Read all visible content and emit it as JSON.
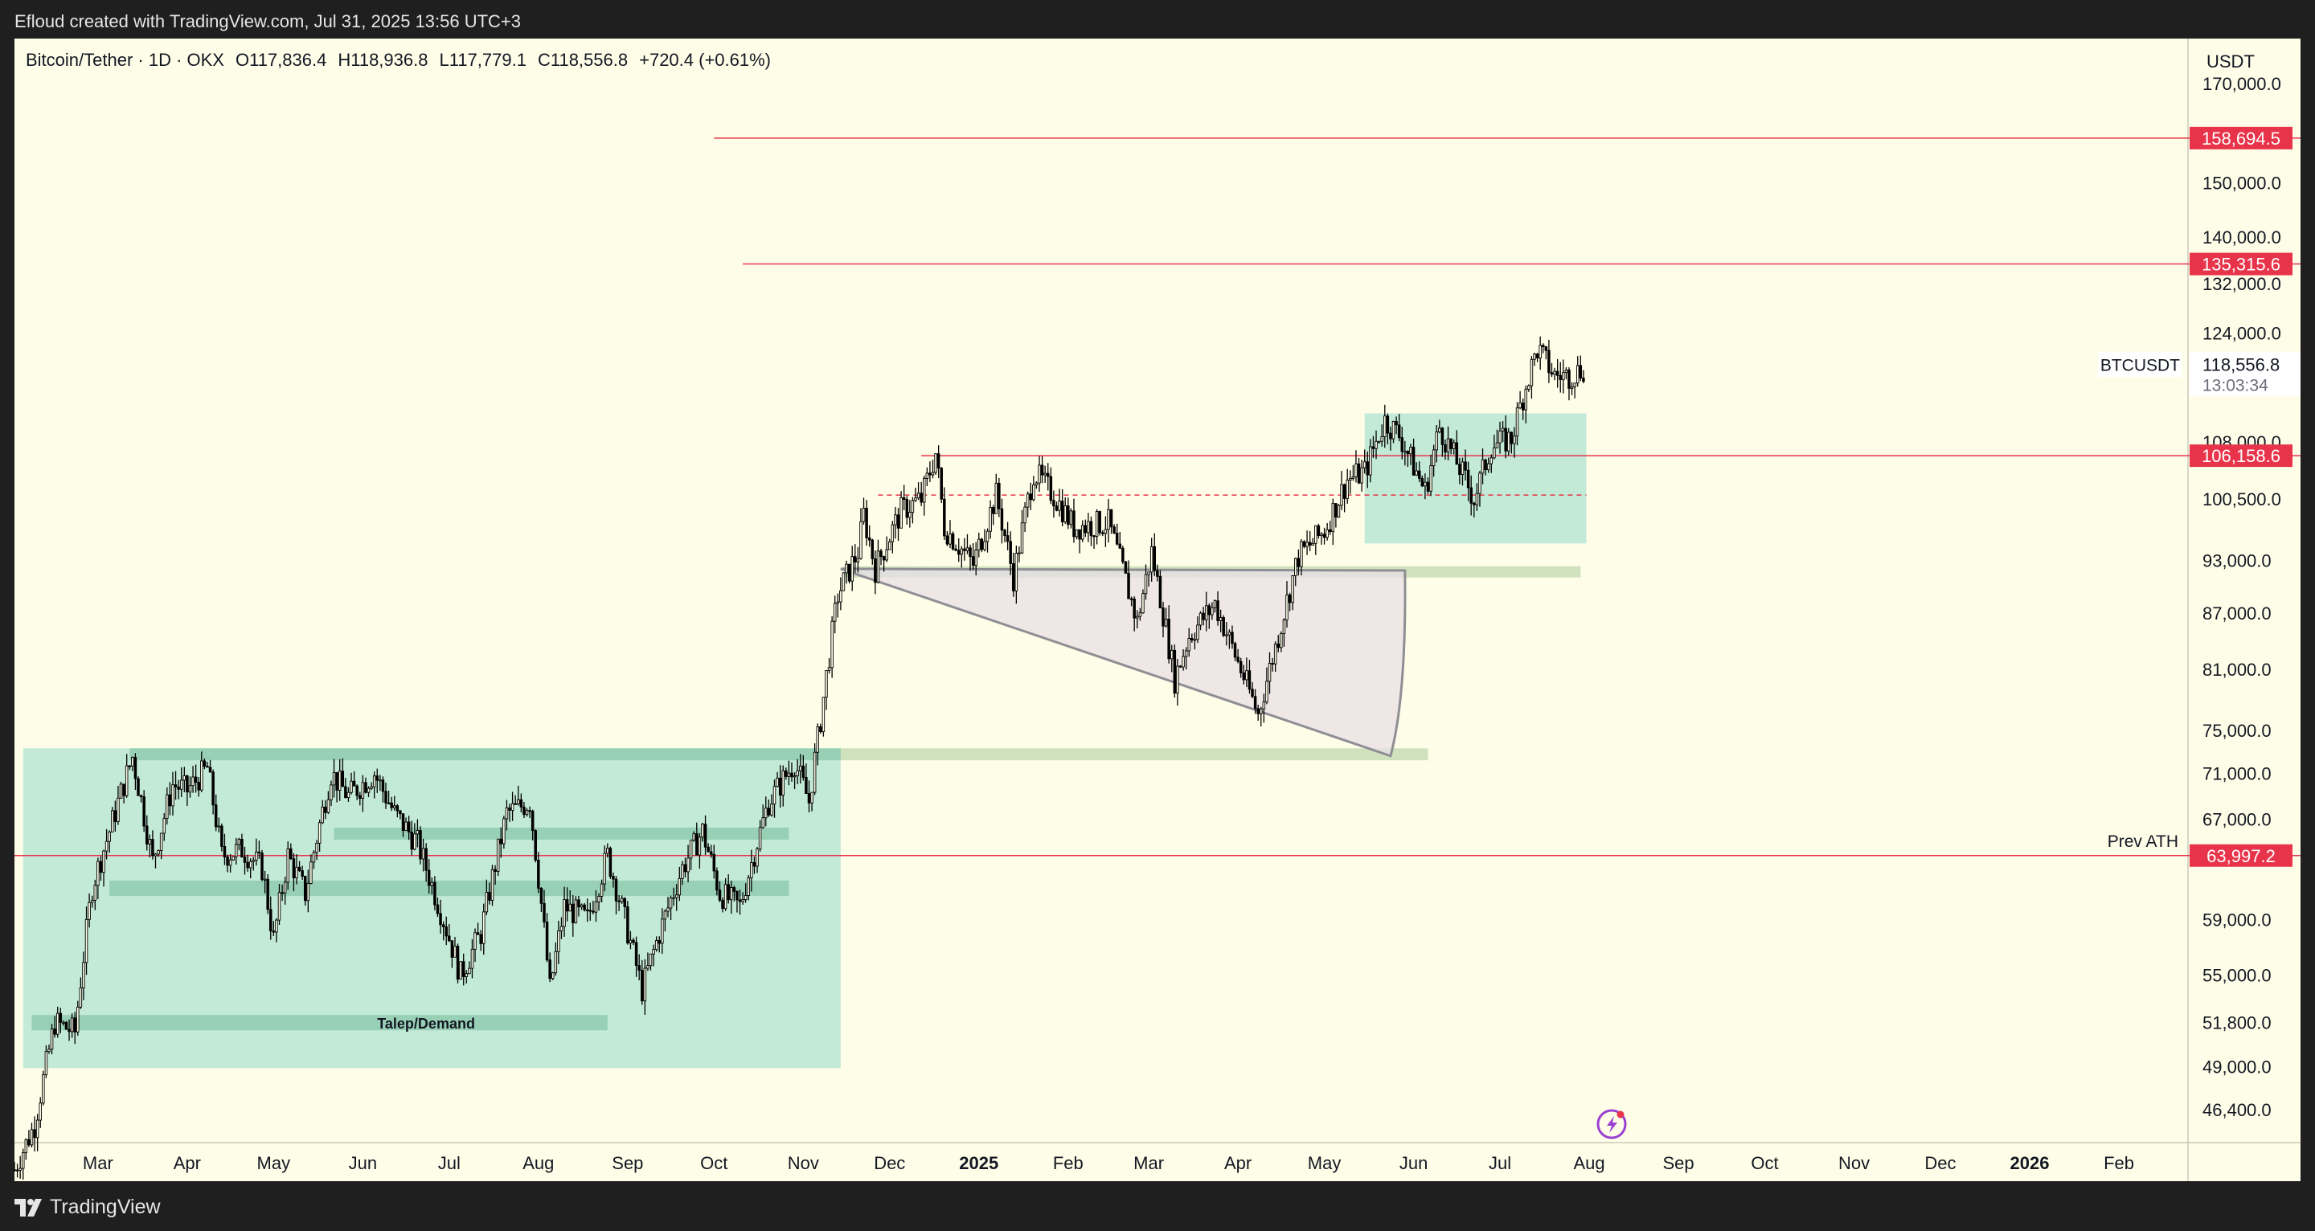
{
  "header": {
    "credit": "Efloud created with TradingView.com, Jul 31, 2025 13:56 UTC+3"
  },
  "footer": {
    "brand": "TradingView"
  },
  "colors": {
    "background": "#fefee8",
    "level_line": "#e8344b",
    "zone_fill": "#b8e5d4",
    "zone_band": "#93cdb2",
    "candle": "#000000"
  },
  "chart_data": {
    "type": "candlestick",
    "symbol_line": "Bitcoin/Tether · 1D · OKX",
    "ohlc": {
      "open": "O117,836.4",
      "high": "H118,936.8",
      "low": "L117,779.1",
      "close": "C118,556.8",
      "change": "+720.4 (+0.61%)"
    },
    "currency": "USDT",
    "y_scale": "log",
    "ylim": [
      44500,
      180000
    ],
    "x_domain": [
      "2024-02-01",
      "2026-02-25"
    ],
    "y_ticks": [
      {
        "label": "170,000.0",
        "value": 170000
      },
      {
        "label": "150,000.0",
        "value": 150000
      },
      {
        "label": "140,000.0",
        "value": 140000
      },
      {
        "label": "132,000.0",
        "value": 132000
      },
      {
        "label": "124,000.0",
        "value": 124000
      },
      {
        "label": "108,000.0",
        "value": 108000
      },
      {
        "label": "100,500.0",
        "value": 100500
      },
      {
        "label": "93,000.0",
        "value": 93000
      },
      {
        "label": "87,000.0",
        "value": 87000
      },
      {
        "label": "81,000.0",
        "value": 81000
      },
      {
        "label": "75,000.0",
        "value": 75000
      },
      {
        "label": "71,000.0",
        "value": 71000
      },
      {
        "label": "67,000.0",
        "value": 67000
      },
      {
        "label": "59,000.0",
        "value": 59000
      },
      {
        "label": "55,000.0",
        "value": 55000
      },
      {
        "label": "51,800.0",
        "value": 51800
      },
      {
        "label": "49,000.0",
        "value": 49000
      },
      {
        "label": "46,400.0",
        "value": 46400
      }
    ],
    "x_ticks": [
      {
        "label": "Mar",
        "date": "2024-03-01"
      },
      {
        "label": "Apr",
        "date": "2024-04-01"
      },
      {
        "label": "May",
        "date": "2024-05-01"
      },
      {
        "label": "Jun",
        "date": "2024-06-01"
      },
      {
        "label": "Jul",
        "date": "2024-07-01"
      },
      {
        "label": "Aug",
        "date": "2024-08-01"
      },
      {
        "label": "Sep",
        "date": "2024-09-01"
      },
      {
        "label": "Oct",
        "date": "2024-10-01"
      },
      {
        "label": "Nov",
        "date": "2024-11-01"
      },
      {
        "label": "Dec",
        "date": "2024-12-01"
      },
      {
        "label": "2025",
        "date": "2025-01-01",
        "bold": true
      },
      {
        "label": "Feb",
        "date": "2025-02-01"
      },
      {
        "label": "Mar",
        "date": "2025-03-01"
      },
      {
        "label": "Apr",
        "date": "2025-04-01"
      },
      {
        "label": "May",
        "date": "2025-05-01"
      },
      {
        "label": "Jun",
        "date": "2025-06-01"
      },
      {
        "label": "Jul",
        "date": "2025-07-01"
      },
      {
        "label": "Aug",
        "date": "2025-08-01"
      },
      {
        "label": "Sep",
        "date": "2025-09-01"
      },
      {
        "label": "Oct",
        "date": "2025-10-01"
      },
      {
        "label": "Nov",
        "date": "2025-11-01"
      },
      {
        "label": "Dec",
        "date": "2025-12-01"
      },
      {
        "label": "2026",
        "date": "2026-01-01",
        "bold": true
      },
      {
        "label": "Feb",
        "date": "2026-02-01"
      }
    ],
    "price_path": [
      [
        "2024-02-01",
        43000
      ],
      [
        "2024-02-08",
        45500
      ],
      [
        "2024-02-15",
        51800
      ],
      [
        "2024-02-22",
        51200
      ],
      [
        "2024-02-28",
        61500
      ],
      [
        "2024-03-05",
        66000
      ],
      [
        "2024-03-13",
        72500
      ],
      [
        "2024-03-20",
        63500
      ],
      [
        "2024-03-27",
        70000
      ],
      [
        "2024-04-01",
        69500
      ],
      [
        "2024-04-08",
        71500
      ],
      [
        "2024-04-13",
        64000
      ],
      [
        "2024-04-20",
        64500
      ],
      [
        "2024-04-27",
        63000
      ],
      [
        "2024-05-01",
        57500
      ],
      [
        "2024-05-06",
        64000
      ],
      [
        "2024-05-12",
        61000
      ],
      [
        "2024-05-21",
        71000
      ],
      [
        "2024-05-27",
        69000
      ],
      [
        "2024-06-05",
        71000
      ],
      [
        "2024-06-12",
        67500
      ],
      [
        "2024-06-20",
        65000
      ],
      [
        "2024-06-26",
        61000
      ],
      [
        "2024-07-05",
        55000
      ],
      [
        "2024-07-12",
        58000
      ],
      [
        "2024-07-21",
        67500
      ],
      [
        "2024-07-29",
        68500
      ],
      [
        "2024-08-05",
        54000
      ],
      [
        "2024-08-10",
        60000
      ],
      [
        "2024-08-18",
        59000
      ],
      [
        "2024-08-25",
        64000
      ],
      [
        "2024-09-06",
        54000
      ],
      [
        "2024-09-12",
        58000
      ],
      [
        "2024-09-20",
        63000
      ],
      [
        "2024-09-27",
        66000
      ],
      [
        "2024-10-03",
        61000
      ],
      [
        "2024-10-10",
        60000
      ],
      [
        "2024-10-20",
        68500
      ],
      [
        "2024-10-29",
        72000
      ],
      [
        "2024-11-03",
        68500
      ],
      [
        "2024-11-07",
        76000
      ],
      [
        "2024-11-13",
        89000
      ],
      [
        "2024-11-20",
        94000
      ],
      [
        "2024-11-22",
        98500
      ],
      [
        "2024-11-26",
        92000
      ],
      [
        "2024-12-05",
        99000
      ],
      [
        "2024-12-12",
        100500
      ],
      [
        "2024-12-17",
        106500
      ],
      [
        "2024-12-20",
        97000
      ],
      [
        "2024-12-30",
        92500
      ],
      [
        "2025-01-07",
        101000
      ],
      [
        "2025-01-13",
        91000
      ],
      [
        "2025-01-20",
        104000
      ],
      [
        "2025-01-27",
        101000
      ],
      [
        "2025-02-03",
        97000
      ],
      [
        "2025-02-15",
        97500
      ],
      [
        "2025-02-25",
        86000
      ],
      [
        "2025-03-02",
        94000
      ],
      [
        "2025-03-10",
        80000
      ],
      [
        "2025-03-15",
        84500
      ],
      [
        "2025-03-24",
        88000
      ],
      [
        "2025-03-31",
        82500
      ],
      [
        "2025-04-08",
        76500
      ],
      [
        "2025-04-15",
        84500
      ],
      [
        "2025-04-22",
        93500
      ],
      [
        "2025-05-01",
        96500
      ],
      [
        "2025-05-09",
        103000
      ],
      [
        "2025-05-15",
        104000
      ],
      [
        "2025-05-22",
        111000
      ],
      [
        "2025-05-27",
        109000
      ],
      [
        "2025-06-05",
        101500
      ],
      [
        "2025-06-10",
        110000
      ],
      [
        "2025-06-17",
        104500
      ],
      [
        "2025-06-22",
        100500
      ],
      [
        "2025-06-28",
        107500
      ],
      [
        "2025-07-05",
        108500
      ],
      [
        "2025-07-10",
        116000
      ],
      [
        "2025-07-14",
        121500
      ],
      [
        "2025-07-20",
        117500
      ],
      [
        "2025-07-25",
        117500
      ],
      [
        "2025-07-30",
        118557
      ]
    ],
    "horizontal_levels": [
      {
        "value": 158694.5,
        "label": "158,694.5",
        "from": "2024-10-01",
        "style": "solid"
      },
      {
        "value": 135315.6,
        "label": "135,315.6",
        "from": "2024-10-11",
        "style": "solid"
      },
      {
        "value": 106158.6,
        "label": "106,158.6",
        "from": "2024-12-12",
        "style": "solid"
      },
      {
        "value": 63997.2,
        "label": "63,997.2",
        "from": "2024-02-01",
        "style": "solid",
        "annotation": "Prev ATH"
      },
      {
        "value": 101000,
        "from": "2024-11-27",
        "to": "2025-07-31",
        "style": "dashed"
      }
    ],
    "zones": [
      {
        "from": "2024-02-04",
        "to": "2024-11-14",
        "low": 48900,
        "high": 73300,
        "kind": "demand-box"
      },
      {
        "from": "2025-05-15",
        "to": "2025-07-31",
        "low": 95000,
        "high": 112000,
        "kind": "box"
      },
      {
        "from": "2024-03-12",
        "to": "2024-11-14",
        "low": 72200,
        "high": 73300,
        "kind": "band"
      },
      {
        "from": "2024-05-22",
        "to": "2024-10-27",
        "low": 65300,
        "high": 66300,
        "kind": "band"
      },
      {
        "from": "2024-03-05",
        "to": "2024-10-27",
        "low": 60800,
        "high": 62000,
        "kind": "band"
      },
      {
        "from": "2024-02-07",
        "to": "2024-08-25",
        "low": 51300,
        "high": 52300,
        "kind": "band",
        "label": "Talep/Demand"
      },
      {
        "from": "2024-11-14",
        "to": "2025-06-06",
        "low": 72200,
        "high": 73300,
        "kind": "band-light"
      },
      {
        "from": "2024-11-15",
        "to": "2025-07-29",
        "low": 91000,
        "high": 92300,
        "kind": "band-light"
      }
    ],
    "triangle": {
      "top_from": [
        "2024-11-14",
        92000
      ],
      "top_to": [
        "2025-05-29",
        91800
      ],
      "bottom_from": [
        "2024-11-14",
        92000
      ],
      "bottom_to": [
        "2025-05-24",
        72600
      ]
    },
    "last_price": {
      "symbol": "BTCUSDT",
      "price": "118,556.8",
      "countdown": "13:03:34"
    }
  }
}
